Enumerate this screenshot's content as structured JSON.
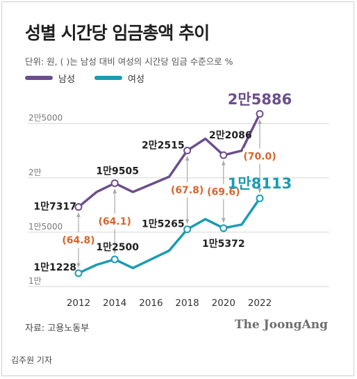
{
  "title": "성별 시간당 임금총액 추이",
  "subtitle": "단위: 원, ( )는 남성 대비 여성의 시간당 임금 수준으로 %",
  "source": "자료: 고용노동부",
  "brand": "The JoongAng",
  "byline": "김주원 기자",
  "colors": {
    "male": "#6b4e8e",
    "female": "#1a9bb3",
    "ratio": "#d8642a",
    "arrow": "#a8a8a8",
    "grid": "#d6d6d6"
  },
  "chart_data": {
    "type": "line",
    "x": [
      2012,
      2013,
      2014,
      2015,
      2016,
      2017,
      2018,
      2019,
      2020,
      2021,
      2022
    ],
    "ylim": [
      10000,
      26000
    ],
    "y_ticks": [
      {
        "value": 10000,
        "label": "1만"
      },
      {
        "value": 15000,
        "label": "1만5000"
      },
      {
        "value": 20000,
        "label": "2만"
      },
      {
        "value": 25000,
        "label": "2만5000"
      }
    ],
    "x_ticks": [
      2012,
      2014,
      2016,
      2018,
      2020,
      2022
    ],
    "series": [
      {
        "name": "남성",
        "key": "male",
        "values": [
          17317,
          18700,
          19505,
          18700,
          19400,
          20100,
          22515,
          23600,
          22086,
          22500,
          25886
        ]
      },
      {
        "name": "여성",
        "key": "female",
        "values": [
          11228,
          12000,
          12500,
          11700,
          12500,
          13300,
          15265,
          16200,
          15372,
          15700,
          18113
        ]
      }
    ],
    "point_labels": [
      {
        "series": "male",
        "x": 2012,
        "text": "1만7317"
      },
      {
        "series": "male",
        "x": 2014,
        "text": "1만9505"
      },
      {
        "series": "male",
        "x": 2018,
        "text": "2만2515"
      },
      {
        "series": "male",
        "x": 2020,
        "text": "2만2086"
      },
      {
        "series": "male",
        "x": 2022,
        "text": "2만5886"
      },
      {
        "series": "female",
        "x": 2012,
        "text": "1만1228"
      },
      {
        "series": "female",
        "x": 2014,
        "text": "1만2500"
      },
      {
        "series": "female",
        "x": 2018,
        "text": "1만5265"
      },
      {
        "series": "female",
        "x": 2020,
        "text": "1만5372"
      },
      {
        "series": "female",
        "x": 2022,
        "text": "1만8113"
      }
    ],
    "ratios": [
      {
        "x": 2012,
        "text": "(64.8)"
      },
      {
        "x": 2014,
        "text": "(64.1)"
      },
      {
        "x": 2018,
        "text": "(67.8)"
      },
      {
        "x": 2020,
        "text": "(69.6)"
      },
      {
        "x": 2022,
        "text": "(70.0)"
      }
    ]
  }
}
